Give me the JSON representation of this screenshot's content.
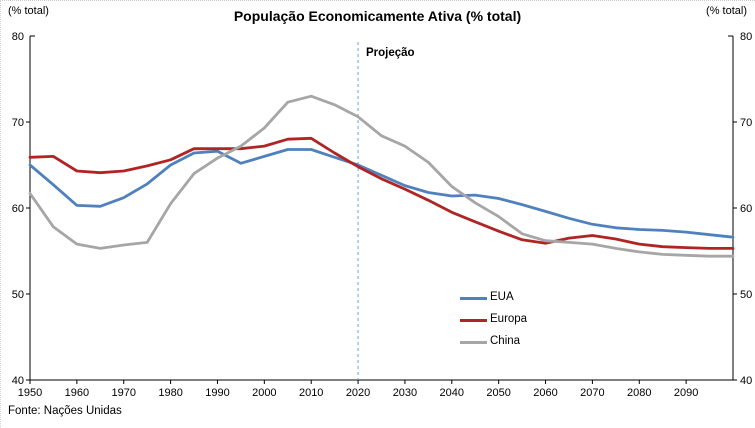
{
  "footer": {
    "source_note": "Fonte: Nações Unidas"
  },
  "chart_data": {
    "type": "line",
    "title": "População Economicamente Ativa (% total)",
    "ylabel_left": "(% total)",
    "ylabel_right": "(% total)",
    "xlabel": "",
    "xlim": [
      1950,
      2100
    ],
    "ylim": [
      40,
      80
    ],
    "x_ticks": [
      1950,
      1960,
      1970,
      1980,
      1990,
      2000,
      2010,
      2020,
      2030,
      2040,
      2050,
      2060,
      2070,
      2080,
      2090
    ],
    "y_ticks": [
      40,
      50,
      60,
      70,
      80
    ],
    "grid": false,
    "legend_position": "inside-lower-right",
    "projection_label": "Projeção",
    "projection_year": 2020,
    "x": [
      1950,
      1955,
      1960,
      1965,
      1970,
      1975,
      1980,
      1985,
      1990,
      1995,
      2000,
      2005,
      2010,
      2015,
      2020,
      2025,
      2030,
      2035,
      2040,
      2045,
      2050,
      2055,
      2060,
      2065,
      2070,
      2075,
      2080,
      2085,
      2090,
      2095,
      2100
    ],
    "series": [
      {
        "name": "EUA",
        "color": "#4F81BD",
        "values": [
          65.0,
          62.7,
          60.3,
          60.2,
          61.2,
          62.8,
          65.0,
          66.4,
          66.6,
          65.2,
          66.0,
          66.8,
          66.8,
          65.9,
          65.0,
          63.8,
          62.6,
          61.8,
          61.4,
          61.5,
          61.1,
          60.4,
          59.6,
          58.8,
          58.1,
          57.7,
          57.5,
          57.4,
          57.2,
          56.9,
          56.6
        ]
      },
      {
        "name": "Europa",
        "color": "#B02424",
        "values": [
          65.9,
          66.0,
          64.3,
          64.1,
          64.3,
          64.9,
          65.6,
          66.9,
          66.9,
          66.9,
          67.2,
          68.0,
          68.1,
          66.4,
          64.8,
          63.4,
          62.2,
          60.9,
          59.5,
          58.4,
          57.3,
          56.3,
          55.9,
          56.5,
          56.8,
          56.4,
          55.8,
          55.5,
          55.4,
          55.3,
          55.3
        ]
      },
      {
        "name": "China",
        "color": "#A6A6A6",
        "values": [
          61.7,
          57.8,
          55.8,
          55.3,
          55.7,
          56.0,
          60.5,
          64.0,
          65.8,
          67.2,
          69.3,
          72.3,
          73.0,
          72.0,
          70.6,
          68.4,
          67.2,
          65.3,
          62.5,
          60.6,
          59.0,
          57.0,
          56.2,
          56.0,
          55.8,
          55.3,
          54.9,
          54.6,
          54.5,
          54.4,
          54.4
        ]
      }
    ],
    "colors": {
      "axis": "#000000",
      "projection_line": "#6FA0CE"
    }
  }
}
